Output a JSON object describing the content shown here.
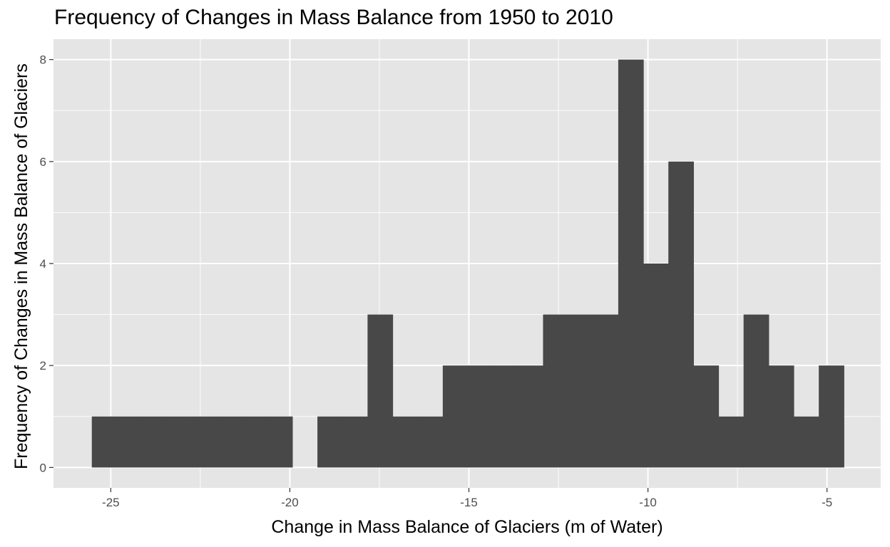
{
  "chart_data": {
    "type": "bar",
    "subtype": "histogram",
    "title": "Frequency of Changes in Mass Balance from 1950 to 2010",
    "xlabel": "Change in Mass Balance of Glaciers (m of Water)",
    "ylabel": "Frequency of Changes in Mass Balance of Glaciers",
    "xlim": [
      -26.6,
      -3.5
    ],
    "ylim": [
      -0.4,
      8.4
    ],
    "x_ticks": [
      -25,
      -20,
      -15,
      -10,
      -5
    ],
    "x_tick_labels": [
      "-25",
      "-20",
      "-15",
      "-10",
      "-5"
    ],
    "y_ticks": [
      0,
      2,
      4,
      6,
      8
    ],
    "y_tick_labels": [
      "0",
      "2",
      "4",
      "6",
      "8"
    ],
    "bin_width": 0.7,
    "bins": [
      {
        "x0": -25.53,
        "x1": -24.83,
        "count": 1
      },
      {
        "x0": -24.83,
        "x1": -24.13,
        "count": 1
      },
      {
        "x0": -24.13,
        "x1": -23.43,
        "count": 1
      },
      {
        "x0": -23.43,
        "x1": -22.73,
        "count": 1
      },
      {
        "x0": -22.73,
        "x1": -22.03,
        "count": 1
      },
      {
        "x0": -22.03,
        "x1": -21.33,
        "count": 1
      },
      {
        "x0": -21.33,
        "x1": -20.63,
        "count": 1
      },
      {
        "x0": -20.63,
        "x1": -19.93,
        "count": 1
      },
      {
        "x0": -19.93,
        "x1": -19.23,
        "count": 0
      },
      {
        "x0": -19.23,
        "x1": -18.53,
        "count": 1
      },
      {
        "x0": -18.53,
        "x1": -17.83,
        "count": 1
      },
      {
        "x0": -17.83,
        "x1": -17.13,
        "count": 3
      },
      {
        "x0": -17.13,
        "x1": -16.43,
        "count": 1
      },
      {
        "x0": -16.43,
        "x1": -15.73,
        "count": 1
      },
      {
        "x0": -15.73,
        "x1": -15.03,
        "count": 2
      },
      {
        "x0": -15.03,
        "x1": -14.33,
        "count": 2
      },
      {
        "x0": -14.33,
        "x1": -13.63,
        "count": 2
      },
      {
        "x0": -13.63,
        "x1": -12.93,
        "count": 2
      },
      {
        "x0": -12.93,
        "x1": -12.23,
        "count": 3
      },
      {
        "x0": -12.23,
        "x1": -11.53,
        "count": 3
      },
      {
        "x0": -11.53,
        "x1": -10.83,
        "count": 3
      },
      {
        "x0": -10.83,
        "x1": -10.13,
        "count": 8
      },
      {
        "x0": -10.13,
        "x1": -9.43,
        "count": 4
      },
      {
        "x0": -9.43,
        "x1": -8.73,
        "count": 6
      },
      {
        "x0": -8.73,
        "x1": -8.03,
        "count": 2
      },
      {
        "x0": -8.03,
        "x1": -7.33,
        "count": 1
      },
      {
        "x0": -7.33,
        "x1": -6.63,
        "count": 3
      },
      {
        "x0": -6.63,
        "x1": -5.93,
        "count": 2
      },
      {
        "x0": -5.93,
        "x1": -5.23,
        "count": 1
      },
      {
        "x0": -5.23,
        "x1": -4.53,
        "count": 2
      }
    ],
    "bar_color": "#484848",
    "panel_background": "#e5e5e5",
    "grid": true,
    "grid_color": "#ffffff",
    "legend": "none"
  }
}
